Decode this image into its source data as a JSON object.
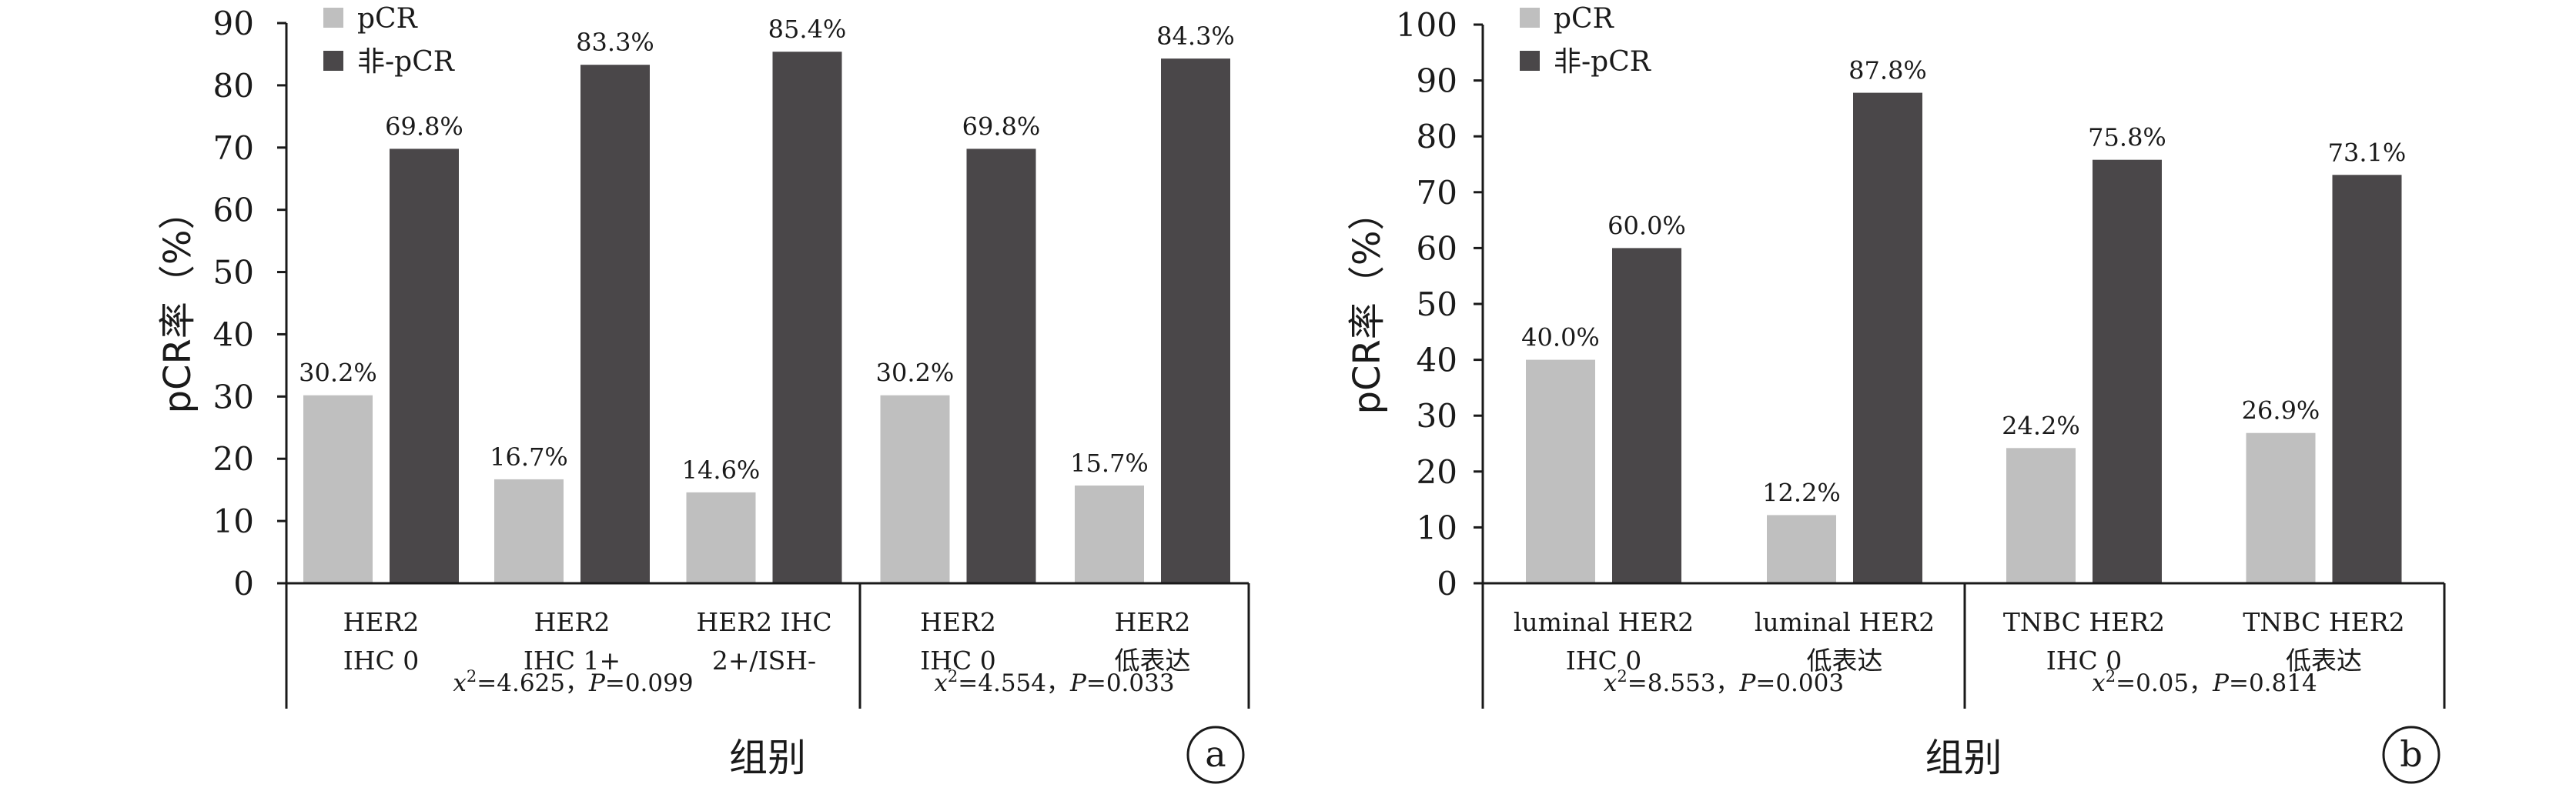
{
  "colors": {
    "pcr": "#bfbfbf",
    "nonpcr": "#4a4749",
    "axis": "#1a1a1a"
  },
  "chart_data": [
    {
      "type": "bar",
      "panel_label": "a",
      "ylabel": "pCR率（%）",
      "xlabel": "组别",
      "ylim": [
        0,
        90
      ],
      "yticks": [
        "0",
        "10",
        "20",
        "30",
        "40",
        "50",
        "60",
        "70",
        "80",
        "90"
      ],
      "legend": [
        "pCR",
        "非-pCR"
      ],
      "legend_position": "top-left",
      "categories": [
        [
          "HER2",
          "IHC 0"
        ],
        [
          "HER2",
          "IHC 1+"
        ],
        [
          "HER2 IHC",
          "2+/ISH-"
        ],
        [
          "HER2",
          "IHC 0"
        ],
        [
          "HER2",
          "低表达"
        ]
      ],
      "series": [
        {
          "name": "pCR",
          "values": [
            30.2,
            16.7,
            14.6,
            30.2,
            15.7
          ],
          "labels": [
            "30.2%",
            "16.7%",
            "14.6%",
            "30.2%",
            "15.7%"
          ]
        },
        {
          "name": "非-pCR",
          "values": [
            69.8,
            83.3,
            85.4,
            69.8,
            84.3
          ],
          "labels": [
            "69.8%",
            "83.3%",
            "85.4%",
            "69.8%",
            "84.3%"
          ]
        }
      ],
      "groups": [
        {
          "categories": [
            0,
            1,
            2
          ],
          "stat_x": "x",
          "stat_chi": "=4.625，",
          "stat_p": "P",
          "stat_pval": "=0.099"
        },
        {
          "categories": [
            3,
            4
          ],
          "stat_x": "x",
          "stat_chi": "=4.554，",
          "stat_p": "P",
          "stat_pval": "=0.033"
        }
      ]
    },
    {
      "type": "bar",
      "panel_label": "b",
      "ylabel": "pCR率（%）",
      "xlabel": "组别",
      "ylim": [
        0,
        100
      ],
      "yticks": [
        "0",
        "10",
        "20",
        "30",
        "40",
        "50",
        "60",
        "70",
        "80",
        "90",
        "100"
      ],
      "legend": [
        "pCR",
        "非-pCR"
      ],
      "legend_position": "top-left",
      "categories": [
        [
          "luminal HER2",
          "IHC 0"
        ],
        [
          "luminal HER2",
          "低表达"
        ],
        [
          "TNBC HER2",
          "IHC 0"
        ],
        [
          "TNBC HER2",
          "低表达"
        ]
      ],
      "series": [
        {
          "name": "pCR",
          "values": [
            40.0,
            12.2,
            24.2,
            26.9
          ],
          "labels": [
            "40.0%",
            "12.2%",
            "24.2%",
            "26.9%"
          ]
        },
        {
          "name": "非-pCR",
          "values": [
            60.0,
            87.8,
            75.8,
            73.1
          ],
          "labels": [
            "60.0%",
            "87.8%",
            "75.8%",
            "73.1%"
          ]
        }
      ],
      "groups": [
        {
          "categories": [
            0,
            1
          ],
          "stat_x": "x",
          "stat_chi": "=8.553，",
          "stat_p": "P",
          "stat_pval": "=0.003"
        },
        {
          "categories": [
            2,
            3
          ],
          "stat_x": "x",
          "stat_chi": "=0.05，",
          "stat_p": "P",
          "stat_pval": "=0.814"
        }
      ]
    }
  ]
}
